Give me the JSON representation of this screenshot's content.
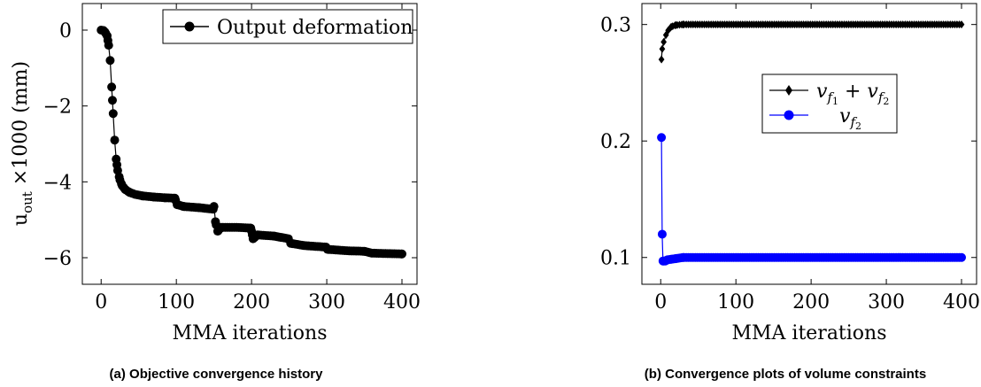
{
  "chart_data": [
    {
      "type": "line",
      "caption": "(a) Objective convergence history",
      "xlabel": "MMA iterations",
      "ylabel": "u_out × 1000 (mm)",
      "ylabel_parts": {
        "base": "u",
        "sub": "out",
        "rest": "×1000 (mm)"
      },
      "xlim": [
        -25,
        420
      ],
      "ylim": [
        -6.7,
        0.7
      ],
      "xticks": [
        0,
        100,
        200,
        300,
        400
      ],
      "yticks": [
        0,
        -2,
        -4,
        -6
      ],
      "ytick_labels": [
        "0",
        "−2",
        "−4",
        "−6"
      ],
      "legend_position": "top-right",
      "marker_every": 3,
      "series": [
        {
          "name": "Output deformation",
          "color": "#000000",
          "marker": "circle",
          "anchors": [
            [
              0,
              0.0
            ],
            [
              3,
              -0.01
            ],
            [
              5,
              -0.05
            ],
            [
              8,
              -0.15
            ],
            [
              10,
              -0.4
            ],
            [
              12,
              -0.8
            ],
            [
              14,
              -1.5
            ],
            [
              16,
              -2.2
            ],
            [
              18,
              -2.9
            ],
            [
              20,
              -3.4
            ],
            [
              22,
              -3.7
            ],
            [
              25,
              -3.95
            ],
            [
              28,
              -4.1
            ],
            [
              32,
              -4.2
            ],
            [
              38,
              -4.28
            ],
            [
              45,
              -4.33
            ],
            [
              55,
              -4.37
            ],
            [
              70,
              -4.4
            ],
            [
              85,
              -4.42
            ],
            [
              98,
              -4.43
            ],
            [
              101,
              -4.6
            ],
            [
              110,
              -4.65
            ],
            [
              130,
              -4.68
            ],
            [
              149,
              -4.72
            ],
            [
              150,
              -4.65
            ],
            [
              152,
              -5.05
            ],
            [
              155,
              -5.3
            ],
            [
              160,
              -5.2
            ],
            [
              180,
              -5.2
            ],
            [
              199,
              -5.22
            ],
            [
              200,
              -5.3
            ],
            [
              202,
              -5.5
            ],
            [
              208,
              -5.4
            ],
            [
              230,
              -5.43
            ],
            [
              249,
              -5.5
            ],
            [
              252,
              -5.62
            ],
            [
              270,
              -5.68
            ],
            [
              299,
              -5.72
            ],
            [
              301,
              -5.78
            ],
            [
              330,
              -5.82
            ],
            [
              350,
              -5.83
            ],
            [
              360,
              -5.88
            ],
            [
              400,
              -5.9
            ]
          ]
        }
      ]
    },
    {
      "type": "line",
      "caption": "(b) Convergence plots of volume constraints",
      "xlabel": "MMA iterations",
      "ylabel": "",
      "xlim": [
        -25,
        420
      ],
      "ylim": [
        0.077,
        0.318
      ],
      "xticks": [
        0,
        100,
        200,
        300,
        400
      ],
      "yticks": [
        0.1,
        0.2,
        0.3
      ],
      "ytick_labels": [
        "0.1",
        "0.2",
        "0.3"
      ],
      "legend_position": "center-right",
      "marker_every": 3,
      "series": [
        {
          "name": "v_f1 + v_f2",
          "color": "#000000",
          "marker": "diamond",
          "anchors": [
            [
              1,
              0.27
            ],
            [
              2,
              0.279
            ],
            [
              4,
              0.285
            ],
            [
              7,
              0.291
            ],
            [
              10,
              0.295
            ],
            [
              14,
              0.298
            ],
            [
              20,
              0.2995
            ],
            [
              30,
              0.3
            ],
            [
              400,
              0.3
            ]
          ]
        },
        {
          "name": "v_f2",
          "color": "#0000ff",
          "marker": "circle",
          "anchors": [
            [
              1,
              0.203
            ],
            [
              2,
              0.12
            ],
            [
              3,
              0.097
            ],
            [
              6,
              0.097
            ],
            [
              9,
              0.098
            ],
            [
              14,
              0.0985
            ],
            [
              20,
              0.099
            ],
            [
              30,
              0.1
            ],
            [
              400,
              0.1
            ]
          ]
        }
      ]
    }
  ]
}
